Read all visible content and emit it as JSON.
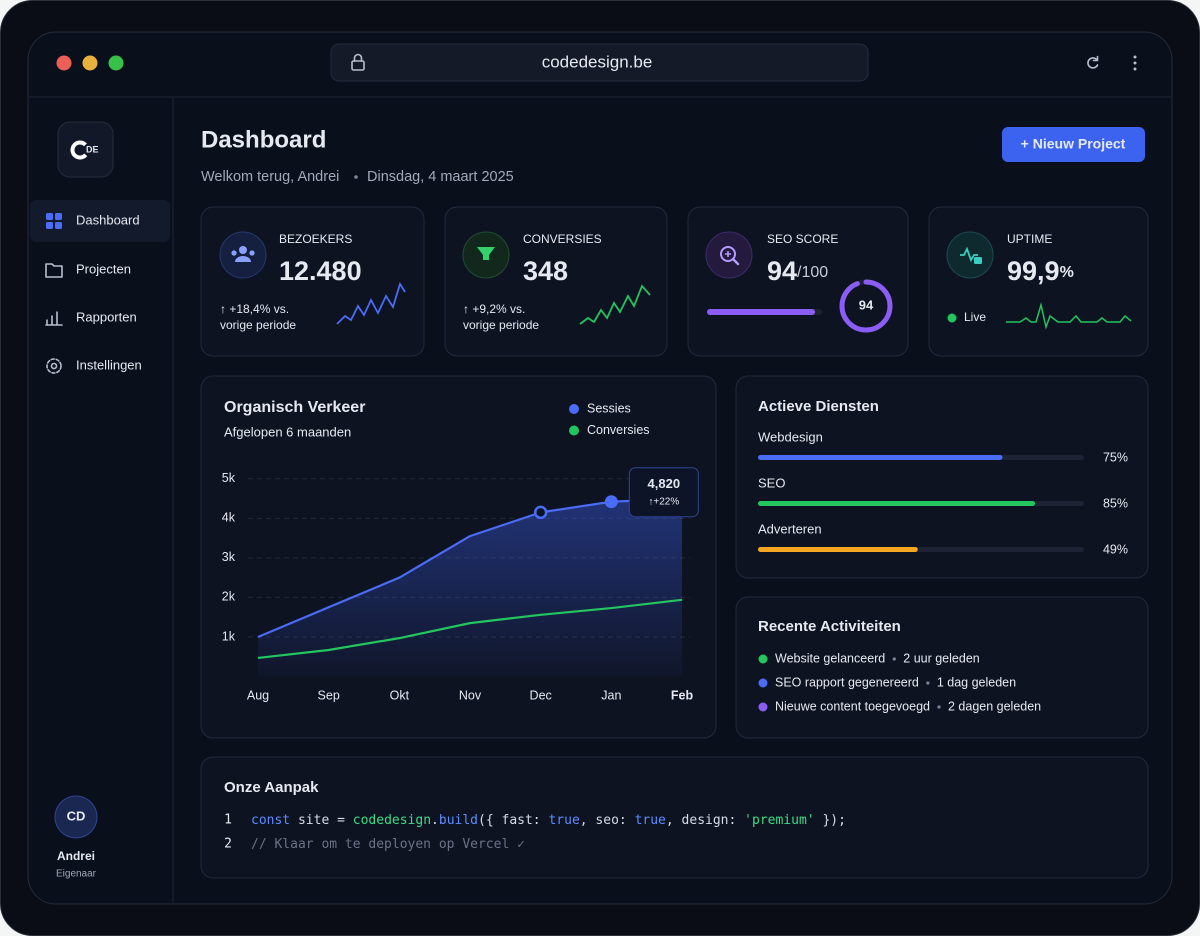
{
  "browser": {
    "url": "codedesign.be"
  },
  "sidebar": {
    "logo": "DE",
    "nav": [
      "Dashboard",
      "Projecten",
      "Rapporten",
      "Instellingen"
    ],
    "user": {
      "initials": "CD",
      "name": "Andrei",
      "role": "Eigenaar"
    }
  },
  "header": {
    "title": "Dashboard",
    "greeting": "Welkom terug, Andrei",
    "date": "Dinsdag, 4 maart 2025",
    "button": "+ Nieuw Project"
  },
  "stats": [
    {
      "label": "BEZOEKERS",
      "value": "12.480",
      "change": "↑ +18,4% vs.",
      "note": "vorige periode"
    },
    {
      "label": "CONVERSIES",
      "value": "348",
      "change": "↑ +9,2% vs.",
      "note": "vorige periode"
    },
    {
      "label": "SEO SCORE",
      "value": 94,
      "suffix": "/100",
      "max": 100
    },
    {
      "label": "UPTIME",
      "value": "99,9",
      "suffix": "%",
      "status": "Live"
    }
  ],
  "chart_data": {
    "type": "line",
    "title": "Organisch Verkeer",
    "subtitle": "Afgelopen 6 maanden",
    "categories": [
      "Aug",
      "Sep",
      "Okt",
      "Nov",
      "Dec",
      "Jan",
      "Feb"
    ],
    "series": [
      {
        "name": "Sessies",
        "color": "#4a6cf7",
        "values": [
          1000,
          1750,
          2500,
          3550,
          4150,
          4420,
          4500
        ]
      },
      {
        "name": "Conversies",
        "color": "#22c55e",
        "values": [
          470,
          670,
          970,
          1350,
          1560,
          1730,
          1940
        ]
      }
    ],
    "ylim": [
      0,
      5500
    ],
    "yticks": [
      {
        "value": 1000,
        "label": "1k"
      },
      {
        "value": 2000,
        "label": "2k"
      },
      {
        "value": 3000,
        "label": "3k"
      },
      {
        "value": 4000,
        "label": "4k"
      },
      {
        "value": 5000,
        "label": "5k"
      }
    ],
    "grid": true,
    "annotation": {
      "text": "4,820",
      "note": "↑+22%"
    }
  },
  "services": {
    "title": "Actieve Diensten",
    "max": 100,
    "items": [
      {
        "name": "Webdesign",
        "value": 75,
        "value_label": "75%",
        "color": "#4a6cf7",
        "label_color": "#4a6cf7"
      },
      {
        "name": "SEO",
        "value": 85,
        "value_label": "85%",
        "color": "#22c55e",
        "label_color": "#22c55e"
      },
      {
        "name": "Adverteren",
        "value": 49,
        "value_label": "49%",
        "color": "#f5a623",
        "label_color": "#22c55e"
      }
    ]
  },
  "activities": {
    "title": "Recente Activiteiten",
    "items": [
      {
        "text": "Website gelanceerd",
        "time": "2 uur geleden",
        "color": "#22c55e"
      },
      {
        "text": "SEO rapport gegenereerd",
        "time": "1 dag geleden",
        "color": "#4a6cf7"
      },
      {
        "text": "Nieuwe content toegevoegd",
        "time": "2 dagen geleden",
        "color": "#8b5cf6"
      }
    ]
  },
  "code": {
    "title": "Onze Aanpak",
    "lines": [
      {
        "number": 1,
        "tokens": [
          {
            "text": "const",
            "kind": "keyword"
          },
          {
            "text": " site = ",
            "kind": "plain"
          },
          {
            "text": "codedesign",
            "kind": "name"
          },
          {
            "text": ".",
            "kind": "plain"
          },
          {
            "text": "build",
            "kind": "keyword"
          },
          {
            "text": "({ fast: ",
            "kind": "plain"
          },
          {
            "text": "true",
            "kind": "keyword"
          },
          {
            "text": ", seo: ",
            "kind": "plain"
          },
          {
            "text": "true",
            "kind": "keyword"
          },
          {
            "text": ", design: ",
            "kind": "plain"
          },
          {
            "text": "'premium'",
            "kind": "string"
          },
          {
            "text": " });",
            "kind": "plain"
          }
        ]
      },
      {
        "number": 2,
        "tokens": [
          {
            "text": "// Klaar om te deployen op Vercel ✓",
            "kind": "comment"
          }
        ]
      }
    ]
  }
}
